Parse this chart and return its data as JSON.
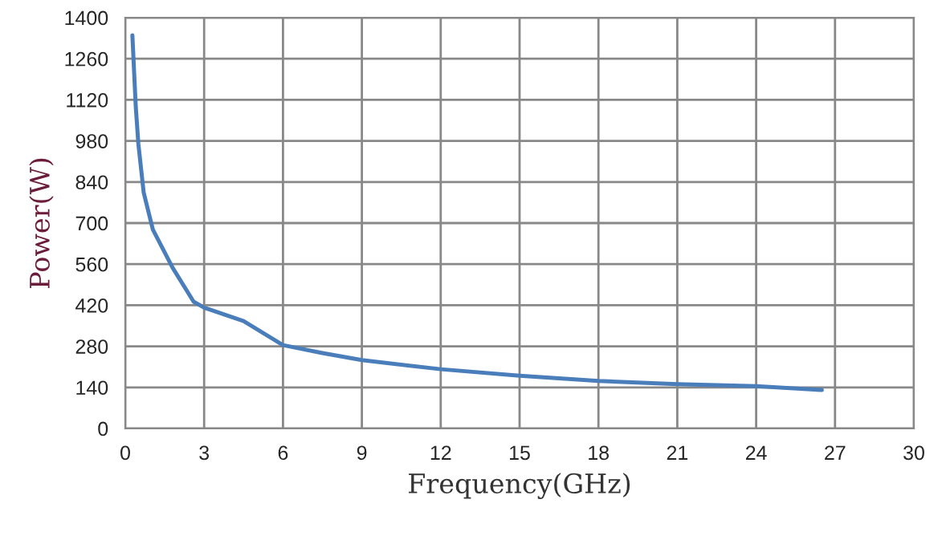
{
  "chart_data": {
    "type": "line",
    "xlabel": "Frequency(GHz)",
    "ylabel": "Power(W)",
    "series": [
      {
        "color": "#4a7ebb",
        "x": [
          0.27,
          0.4,
          0.5,
          0.7,
          1.05,
          1.8,
          2.6,
          3,
          4.5,
          6,
          7.5,
          9,
          12,
          15,
          18,
          21,
          24,
          26.5
        ],
        "values": [
          1340,
          1095,
          968,
          804,
          678,
          548,
          432,
          412,
          366,
          284,
          257,
          233,
          202,
          180,
          162,
          151,
          144,
          131
        ]
      }
    ],
    "xlim": [
      0,
      30
    ],
    "xticks": [
      0,
      3,
      6,
      9,
      12,
      15,
      18,
      21,
      24,
      27,
      30
    ],
    "ylim": [
      0,
      1400
    ],
    "yticks": [
      0,
      140,
      280,
      420,
      560,
      700,
      840,
      980,
      1120,
      1260,
      1400
    ],
    "grid": true,
    "marker": "none",
    "line_style": "solid"
  }
}
